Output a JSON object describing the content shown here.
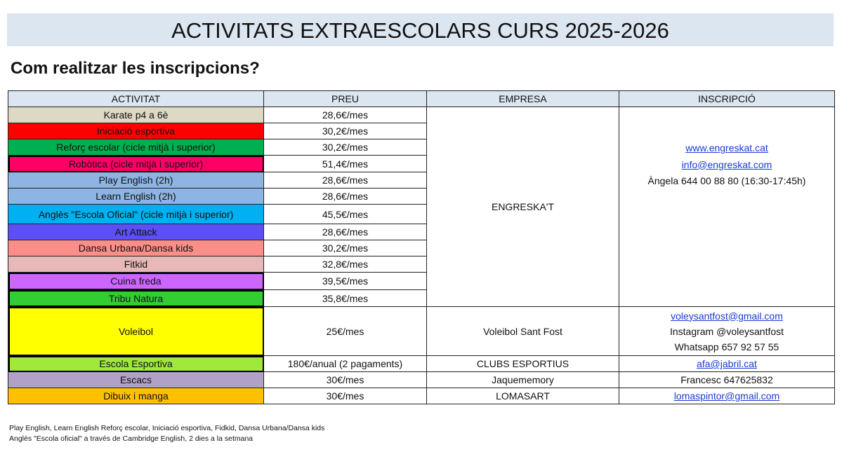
{
  "title": "ACTIVITATS EXTRAESCOLARS CURS 2025-2026",
  "subtitle": "Com realitzar les inscripcions?",
  "headers": [
    "ACTIVITAT",
    "PREU",
    "EMPRESA",
    "INSCRIPCIÓ"
  ],
  "rows": [
    {
      "activity": "Karate p4  a 6è",
      "price": "28,6€/mes",
      "color": "#ddd9c4"
    },
    {
      "activity": "Iniciació esportiva",
      "price": "30,2€/mes",
      "color": "#ff0000"
    },
    {
      "activity": "Reforç escolar (cicle mitjà i superior)",
      "price": "30,2€/mes",
      "color": "#00b050"
    },
    {
      "activity": "Robòtica (cicle mitjà i superior)",
      "price": "51,4€/mes",
      "color": "#ff0066"
    },
    {
      "activity": "Play English (2h)",
      "price": "28,6€/mes",
      "color": "#8db4e2"
    },
    {
      "activity": "Learn English (2h)",
      "price": "28,6€/mes",
      "color": "#8db4e2"
    },
    {
      "activity": "Anglès \"Escola Oficial\" (cicle mitjà i superior)",
      "price": "45,5€/mes",
      "color": "#00b0f0"
    },
    {
      "activity": "Art Attack",
      "price": "28,6€/mes",
      "color": "#5b4ff5"
    },
    {
      "activity": "Dansa Urbana/Dansa kids",
      "price": "30,2€/mes",
      "color": "#fa8f8a"
    },
    {
      "activity": "Fitkid",
      "price": "32,8€/mes",
      "color": "#e6b8b7"
    },
    {
      "activity": "Cuina freda",
      "price": "39,5€/mes",
      "color": "#cc66ff"
    },
    {
      "activity": "Tribu Natura",
      "price": "35,8€/mes",
      "color": "#33cc33"
    },
    {
      "activity": "Voleibol",
      "price": "25€/mes",
      "color": "#ffff00"
    },
    {
      "activity": "Escola Esportiva",
      "price": "180€/anual (2 pagaments)",
      "color": "#a0e83c"
    },
    {
      "activity": "Escacs",
      "price": "30€/mes",
      "color": "#b1a0c7"
    },
    {
      "activity": "Dibuix i manga",
      "price": "30€/mes",
      "color": "#ffc000"
    }
  ],
  "engreskat": {
    "company": "ENGRESKA'T",
    "web": "www.engreskat.cat",
    "email": " info@engreskat.com",
    "contact": "Àngela 644 00 88 80 (16:30-17:45h)"
  },
  "voleibol": {
    "company": "Voleibol Sant Fost",
    "email": "voleysantfost@gmail.com",
    "instagram": "Instagram @voleysantfost",
    "whatsapp": "Whatsapp 657 92 57 55"
  },
  "escola": {
    "company": "CLUBS ESPORTIUS",
    "email": "afa@jabril.cat"
  },
  "escacs": {
    "company": "Jaquememory",
    "contact": "Francesc 647625832"
  },
  "dibuix": {
    "company": "LOMASART",
    "email": "lomaspintor@gmail.com"
  },
  "notes": [
    "Play English, Learn English Reforç escolar, Iniciació esportiva, Fidkid, Dansa Urbana/Dansa kids",
    "Anglès \"Escola oficial\" a través de Cambridge English, 2 dies a la setmana"
  ]
}
